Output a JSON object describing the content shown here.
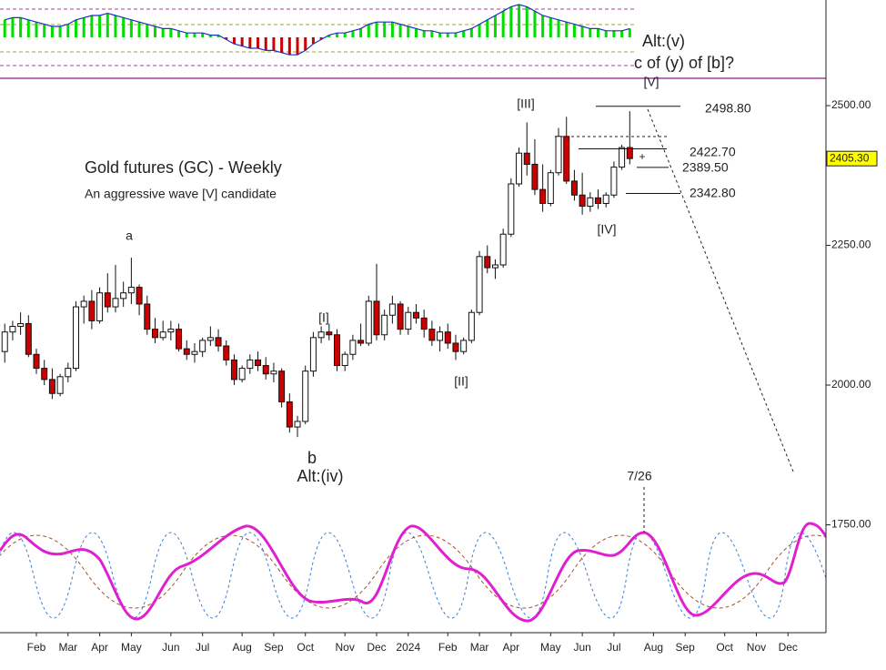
{
  "chart_data": {
    "type": "candlestick",
    "title": "Gold futures (GC) - Weekly",
    "subtitle": "An aggressive wave [V] candidate",
    "up_color": "#ffffff",
    "down_color": "#cc0000",
    "open": [
      2060,
      2095,
      2105,
      2110,
      2055,
      2030,
      2010,
      1985,
      2015,
      2030,
      2140,
      2150,
      2115,
      2165,
      2140,
      2155,
      2165,
      2175,
      2145,
      2100,
      2085,
      2095,
      2100,
      2065,
      2055,
      2060,
      2080,
      2085,
      2070,
      2045,
      2010,
      2030,
      2045,
      2035,
      2020,
      2025,
      1970,
      1925,
      1935,
      2025,
      2085,
      2095,
      2090,
      2035,
      2055,
      2080,
      2075,
      2150,
      2090,
      2125,
      2145,
      2100,
      2130,
      2120,
      2100,
      2080,
      2095,
      2075,
      2060,
      2080,
      2130,
      2230,
      2210,
      2215,
      2270,
      2360,
      2415,
      2395,
      2350,
      2325,
      2380,
      2445,
      2365,
      2340,
      2320,
      2335,
      2325,
      2340,
      2390,
      2425
    ],
    "high": [
      2110,
      2115,
      2130,
      2125,
      2065,
      2045,
      2030,
      2020,
      2040,
      2150,
      2160,
      2170,
      2175,
      2200,
      2215,
      2185,
      2228,
      2180,
      2160,
      2120,
      2115,
      2115,
      2110,
      2080,
      2075,
      2085,
      2105,
      2100,
      2080,
      2055,
      2035,
      2055,
      2060,
      2050,
      2040,
      2030,
      1985,
      1945,
      2035,
      2095,
      2105,
      2110,
      2100,
      2060,
      2090,
      2110,
      2160,
      2217,
      2135,
      2160,
      2150,
      2140,
      2145,
      2135,
      2115,
      2105,
      2110,
      2090,
      2085,
      2135,
      2240,
      2250,
      2225,
      2280,
      2370,
      2425,
      2470,
      2440,
      2395,
      2385,
      2460,
      2480,
      2385,
      2380,
      2345,
      2350,
      2345,
      2400,
      2430,
      2490
    ],
    "low": [
      2040,
      2080,
      2090,
      2050,
      2020,
      2000,
      1975,
      1980,
      2005,
      2025,
      2110,
      2100,
      2110,
      2130,
      2130,
      2140,
      2145,
      2125,
      2090,
      2075,
      2080,
      2080,
      2060,
      2045,
      2040,
      2050,
      2070,
      2060,
      2035,
      2000,
      2005,
      2020,
      2025,
      2010,
      2005,
      1960,
      1915,
      1907,
      1930,
      2015,
      2075,
      2080,
      2025,
      2025,
      2045,
      2070,
      2070,
      2080,
      2080,
      2110,
      2090,
      2090,
      2110,
      2085,
      2070,
      2060,
      2065,
      2045,
      2055,
      2075,
      2125,
      2200,
      2190,
      2210,
      2265,
      2355,
      2375,
      2340,
      2310,
      2320,
      2375,
      2360,
      2330,
      2305,
      2310,
      2315,
      2318,
      2335,
      2385,
      2395
    ],
    "close": [
      2095,
      2105,
      2110,
      2055,
      2030,
      2010,
      1985,
      2015,
      2030,
      2140,
      2150,
      2115,
      2165,
      2140,
      2155,
      2165,
      2175,
      2145,
      2100,
      2085,
      2095,
      2100,
      2065,
      2055,
      2060,
      2080,
      2085,
      2070,
      2045,
      2010,
      2030,
      2045,
      2035,
      2020,
      2025,
      1970,
      1925,
      1935,
      2025,
      2085,
      2095,
      2090,
      2035,
      2055,
      2080,
      2075,
      2150,
      2090,
      2125,
      2145,
      2100,
      2130,
      2120,
      2100,
      2080,
      2095,
      2075,
      2060,
      2080,
      2130,
      2230,
      2210,
      2215,
      2270,
      2360,
      2415,
      2395,
      2350,
      2325,
      2380,
      2445,
      2365,
      2340,
      2320,
      2335,
      2325,
      2340,
      2390,
      2425,
      2405.3
    ],
    "xlim": [
      -0.6,
      103.8
    ],
    "xticks": [
      {
        "value": 4,
        "label": "Feb"
      },
      {
        "value": 8,
        "label": "Mar"
      },
      {
        "value": 12,
        "label": "Apr"
      },
      {
        "value": 16,
        "label": "May"
      },
      {
        "value": 21,
        "label": "Jun"
      },
      {
        "value": 25,
        "label": "Jul"
      },
      {
        "value": 30,
        "label": "Aug"
      },
      {
        "value": 34,
        "label": "Sep"
      },
      {
        "value": 38,
        "label": "Oct"
      },
      {
        "value": 43,
        "label": "Nov"
      },
      {
        "value": 47,
        "label": "Dec"
      },
      {
        "value": 51,
        "label": "2024"
      },
      {
        "value": 56,
        "label": "Feb"
      },
      {
        "value": 60,
        "label": "Mar"
      },
      {
        "value": 64,
        "label": "Apr"
      },
      {
        "value": 69,
        "label": "May"
      },
      {
        "value": 73,
        "label": "Jun"
      },
      {
        "value": 77,
        "label": "Jul"
      },
      {
        "value": 82,
        "label": "Aug"
      },
      {
        "value": 86,
        "label": "Sep"
      },
      {
        "value": 91,
        "label": "Oct"
      },
      {
        "value": 95,
        "label": "Nov"
      },
      {
        "value": 99,
        "label": "Dec"
      }
    ],
    "ylim": [
      1557,
      2689
    ],
    "yticks": [
      {
        "value": 2500,
        "label": "2500.00"
      },
      {
        "value": 2250,
        "label": "2250.00"
      },
      {
        "value": 2000,
        "label": "2000.00"
      },
      {
        "value": 1750,
        "label": "1750.00"
      }
    ],
    "last_price": {
      "value": 2405.3,
      "label": "2405.30"
    },
    "levels": [
      {
        "value": 2498.8,
        "label": "2498.80"
      },
      {
        "value": 2422.7,
        "label": "2422.70"
      },
      {
        "value": 2389.5,
        "label": "2389.50"
      },
      {
        "value": 2342.8,
        "label": "2342.80"
      }
    ],
    "annotations": [
      "a",
      "b",
      "Alt:(iv)",
      "[I]",
      "[II]",
      "[III]",
      "[IV]",
      "[V]",
      "Alt:(v)",
      "c of (y) of [b]?",
      "7/26"
    ],
    "oscillator": {
      "ylim": [
        -10,
        15
      ],
      "up_color": "#00dd00",
      "down_color": "#cc0000",
      "values": [
        8,
        9,
        9,
        8,
        7,
        6,
        5,
        5,
        6,
        8,
        9,
        10,
        10,
        11,
        10,
        9,
        8,
        7,
        6,
        5,
        4,
        4,
        3,
        2,
        2,
        2,
        1,
        1,
        -1,
        -3,
        -4,
        -5,
        -5,
        -6,
        -6,
        -7,
        -8,
        -8,
        -6,
        -3,
        -1,
        1,
        2,
        2,
        3,
        4,
        6,
        7,
        7,
        7,
        6,
        5,
        4,
        3,
        3,
        2,
        2,
        2,
        3,
        4,
        6,
        8,
        10,
        12,
        14,
        15,
        14,
        12,
        10,
        9,
        8,
        7,
        6,
        5,
        4,
        4,
        3,
        3,
        3,
        4
      ]
    }
  }
}
